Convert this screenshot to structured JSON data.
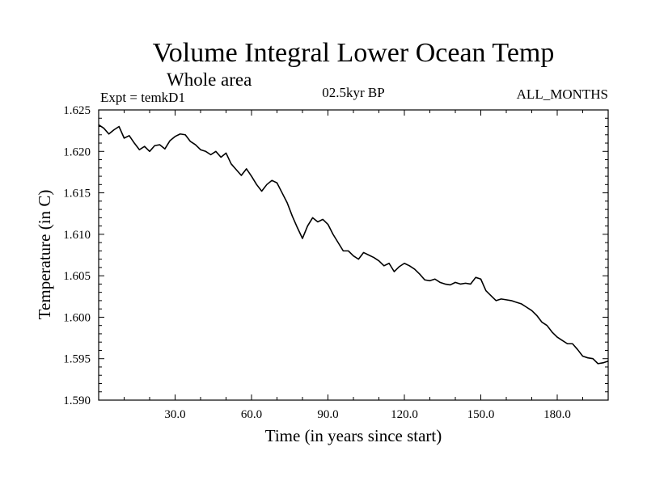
{
  "chart_data": {
    "type": "line",
    "title": "Volume Integral Lower Ocean Temp",
    "subtitle": "Whole area",
    "experiment_label": "Expt = temkD1",
    "period_label": "02.5kyr BP",
    "months_label": "ALL_MONTHS",
    "xlabel": "Time (in years since start)",
    "ylabel": "Temperature (in C)",
    "xlim": [
      0,
      200
    ],
    "ylim": [
      1.59,
      1.625
    ],
    "x_ticks": [
      30,
      60,
      90,
      120,
      150,
      180
    ],
    "x_tick_labels": [
      "30.0",
      "60.0",
      "90.0",
      "120.0",
      "150.0",
      "180.0"
    ],
    "y_ticks": [
      1.59,
      1.595,
      1.6,
      1.605,
      1.61,
      1.615,
      1.62,
      1.625
    ],
    "y_tick_labels": [
      "1.590",
      "1.595",
      "1.600",
      "1.605",
      "1.610",
      "1.615",
      "1.620",
      "1.625"
    ],
    "grid": false,
    "series": [
      {
        "name": "Volume integral lower ocean temperature",
        "color": "#000000",
        "x": [
          0,
          2,
          4,
          6,
          8,
          10,
          12,
          14,
          16,
          18,
          20,
          22,
          24,
          26,
          28,
          30,
          32,
          34,
          36,
          38,
          40,
          42,
          44,
          46,
          48,
          50,
          52,
          54,
          56,
          58,
          60,
          62,
          64,
          66,
          68,
          70,
          72,
          74,
          76,
          78,
          80,
          82,
          84,
          86,
          88,
          90,
          92,
          94,
          96,
          98,
          100,
          102,
          104,
          106,
          108,
          110,
          112,
          114,
          116,
          118,
          120,
          122,
          124,
          126,
          128,
          130,
          132,
          134,
          136,
          138,
          140,
          142,
          144,
          146,
          148,
          150,
          152,
          154,
          156,
          158,
          160,
          162,
          164,
          166,
          168,
          170,
          172,
          174,
          176,
          178,
          180,
          182,
          184,
          186,
          188,
          190,
          192,
          194,
          196,
          198,
          200
        ],
        "values": [
          1.6232,
          1.6228,
          1.6221,
          1.6226,
          1.623,
          1.6216,
          1.6219,
          1.621,
          1.6202,
          1.6206,
          1.62,
          1.6207,
          1.6208,
          1.6203,
          1.6213,
          1.6218,
          1.6221,
          1.622,
          1.6212,
          1.6208,
          1.6202,
          1.62,
          1.6196,
          1.62,
          1.6193,
          1.6198,
          1.6185,
          1.6178,
          1.6171,
          1.6179,
          1.617,
          1.616,
          1.6152,
          1.616,
          1.6165,
          1.6162,
          1.615,
          1.6138,
          1.6122,
          1.6108,
          1.6095,
          1.611,
          1.612,
          1.6115,
          1.6118,
          1.6112,
          1.61,
          1.609,
          1.608,
          1.608,
          1.6074,
          1.607,
          1.6078,
          1.6075,
          1.6072,
          1.6068,
          1.6062,
          1.6065,
          1.6055,
          1.6061,
          1.6065,
          1.6062,
          1.6058,
          1.6052,
          1.6045,
          1.6044,
          1.6046,
          1.6042,
          1.604,
          1.6039,
          1.6042,
          1.604,
          1.6041,
          1.604,
          1.6048,
          1.6046,
          1.6032,
          1.6026,
          1.602,
          1.6022,
          1.6021,
          1.602,
          1.6018,
          1.6016,
          1.6012,
          1.6008,
          1.6002,
          1.5994,
          1.599,
          1.5982,
          1.5976,
          1.5972,
          1.5968,
          1.5968,
          1.5961,
          1.5953,
          1.5951,
          1.595,
          1.5944,
          1.5945,
          1.5947
        ]
      }
    ]
  }
}
